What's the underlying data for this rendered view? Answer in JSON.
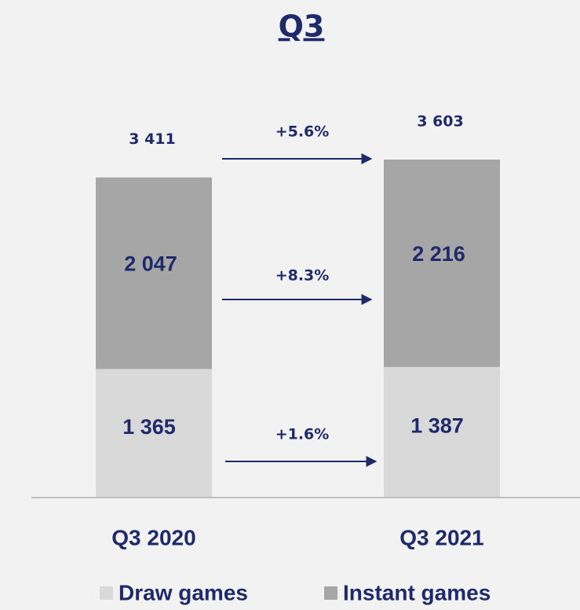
{
  "chart_data": {
    "type": "stacked_bar",
    "title": "Q3",
    "categories": [
      "Q3 2020",
      "Q3 2021"
    ],
    "series": [
      {
        "name": "Draw games",
        "color": "#d9d9d9",
        "values": [
          1365,
          1387
        ],
        "value_labels": [
          "1 365",
          "1 387"
        ]
      },
      {
        "name": "Instant games",
        "color": "#a6a6a6",
        "values": [
          2047,
          2216
        ],
        "value_labels": [
          "2 047",
          "2 216"
        ]
      }
    ],
    "totals": {
      "values": [
        3411,
        3603
      ],
      "value_labels": [
        "3 411",
        "3 603"
      ]
    },
    "annotations": [
      "+5.6%",
      "+8.3%",
      "+1.6%"
    ]
  }
}
